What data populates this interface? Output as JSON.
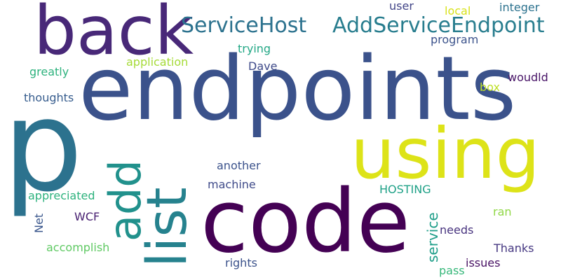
{
  "words": [
    {
      "text": "endpoints",
      "color": "#3b528b"
    },
    {
      "text": "p",
      "color": "#2c728e"
    },
    {
      "text": "code",
      "color": "#440154"
    },
    {
      "text": "back",
      "color": "#482878"
    },
    {
      "text": "using",
      "color": "#dde318"
    },
    {
      "text": "list",
      "color": "#26828e"
    },
    {
      "text": "add",
      "color": "#21918c"
    },
    {
      "text": "ServiceHost",
      "color": "#2c728e"
    },
    {
      "text": "AddServiceEndpoint",
      "color": "#287d8e"
    },
    {
      "text": "service",
      "color": "#1f9e89"
    },
    {
      "text": "user",
      "color": "#414487"
    },
    {
      "text": "local",
      "color": "#d8e219"
    },
    {
      "text": "integer",
      "color": "#2c728e"
    },
    {
      "text": "trying",
      "color": "#22a785"
    },
    {
      "text": "program",
      "color": "#3b528b"
    },
    {
      "text": "application",
      "color": "#a5db36"
    },
    {
      "text": "greatly",
      "color": "#2db27d"
    },
    {
      "text": "Dave",
      "color": "#3e4a89"
    },
    {
      "text": "woudld",
      "color": "#481467"
    },
    {
      "text": "box",
      "color": "#bddf26"
    },
    {
      "text": "thoughts",
      "color": "#365c8d"
    },
    {
      "text": "another",
      "color": "#3b528b"
    },
    {
      "text": "machine",
      "color": "#3e4a89"
    },
    {
      "text": "HOSTING",
      "color": "#1fa187"
    },
    {
      "text": "appreciated",
      "color": "#2db27d"
    },
    {
      "text": "WCF",
      "color": "#482071"
    },
    {
      "text": "Net",
      "color": "#39568c"
    },
    {
      "text": "ran",
      "color": "#8fd744"
    },
    {
      "text": "needs",
      "color": "#46327e"
    },
    {
      "text": "accomplish",
      "color": "#5ec962"
    },
    {
      "text": "Thanks",
      "color": "#453781"
    },
    {
      "text": "rights",
      "color": "#3b528b"
    },
    {
      "text": "issues",
      "color": "#471063"
    },
    {
      "text": "pass",
      "color": "#35b779"
    }
  ]
}
